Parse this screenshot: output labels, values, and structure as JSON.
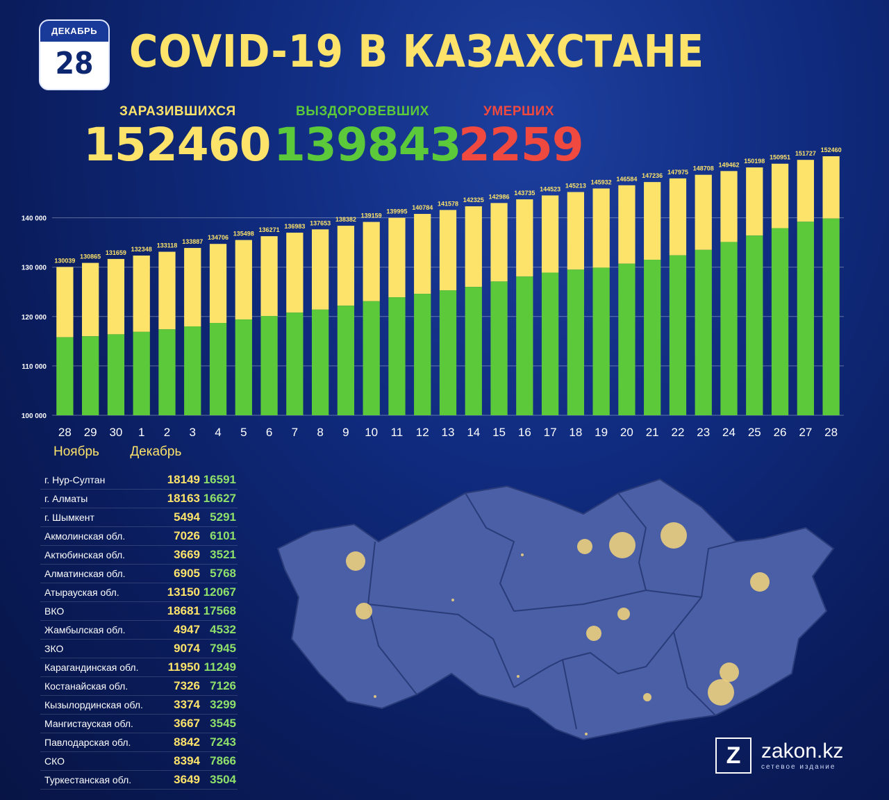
{
  "header": {
    "month": "ДЕКАБРЬ",
    "day": "28",
    "title": "COVID-19 В КАЗАХСТАНЕ"
  },
  "stats": {
    "infected_label": "ЗАРАЗИВШИХСЯ",
    "infected_value": "152460",
    "recovered_label": "ВЫЗДОРОВЕВШИХ",
    "recovered_value": "139843",
    "deaths_label": "УМЕРШИХ",
    "deaths_value": "2259"
  },
  "colors": {
    "yellow": "#fde36a",
    "green": "#5cc93a",
    "red": "#f0493f",
    "map_fill": "#4a5fa6",
    "map_stroke": "#2a3b7a",
    "bubble": "#f4d57a"
  },
  "chart_data": {
    "type": "bar",
    "categories": [
      "28",
      "29",
      "30",
      "1",
      "2",
      "3",
      "4",
      "5",
      "6",
      "7",
      "8",
      "9",
      "10",
      "11",
      "12",
      "13",
      "14",
      "15",
      "16",
      "17",
      "18",
      "19",
      "20",
      "21",
      "22",
      "23",
      "24",
      "25",
      "26",
      "27",
      "28"
    ],
    "month_labels": [
      "Ноябрь",
      "Декабрь"
    ],
    "series": [
      {
        "values": [
          115800,
          116000,
          116400,
          116900,
          117400,
          118000,
          118700,
          119400,
          120100,
          120800,
          121400,
          122200,
          123100,
          123900,
          124600,
          125300,
          126000,
          127100,
          128100,
          128900,
          129500,
          129900,
          130700,
          131500,
          132400,
          133500,
          135100,
          136400,
          137900,
          139200,
          139843
        ]
      },
      {
        "values": [
          130039,
          130865,
          131659,
          132348,
          133118,
          133887,
          134706,
          135498,
          136271,
          136983,
          137653,
          138382,
          139159,
          139995,
          140784,
          141578,
          142325,
          142986,
          143735,
          144523,
          145213,
          145932,
          146584,
          147236,
          147975,
          148708,
          149462,
          150198,
          150951,
          151727,
          152460
        ]
      }
    ],
    "ylim": [
      100000,
      152460
    ],
    "yticks": [
      "100 000",
      "110 000",
      "120 000",
      "130 000",
      "140 000"
    ],
    "ytick_values": [
      100000,
      110000,
      120000,
      130000,
      140000
    ],
    "grid": true,
    "legend": "none"
  },
  "regions": [
    {
      "name": "г. Нур-Султан",
      "infected": "18149",
      "recovered": "16591"
    },
    {
      "name": "г. Алматы",
      "infected": "18163",
      "recovered": "16627"
    },
    {
      "name": "г. Шымкент",
      "infected": "5494",
      "recovered": "5291"
    },
    {
      "name": "Акмолинская обл.",
      "infected": "7026",
      "recovered": "6101"
    },
    {
      "name": "Актюбинская обл.",
      "infected": "3669",
      "recovered": "3521"
    },
    {
      "name": "Алматинская обл.",
      "infected": "6905",
      "recovered": "5768"
    },
    {
      "name": "Атырауская обл.",
      "infected": "13150",
      "recovered": "12067"
    },
    {
      "name": "ВКО",
      "infected": "18681",
      "recovered": "17568"
    },
    {
      "name": "Жамбылская обл.",
      "infected": "4947",
      "recovered": "4532"
    },
    {
      "name": "ЗКО",
      "infected": "9074",
      "recovered": "7945"
    },
    {
      "name": "Карагандинская обл.",
      "infected": "11950",
      "recovered": "11249"
    },
    {
      "name": "Костанайская обл.",
      "infected": "7326",
      "recovered": "7126"
    },
    {
      "name": "Кызылординская обл.",
      "infected": "3374",
      "recovered": "3299"
    },
    {
      "name": "Мангистауская обл.",
      "infected": "3667",
      "recovered": "3545"
    },
    {
      "name": "Павлодарская обл.",
      "infected": "8842",
      "recovered": "7243"
    },
    {
      "name": "СКО",
      "infected": "8394",
      "recovered": "7866"
    },
    {
      "name": "Туркестанская обл.",
      "infected": "3649",
      "recovered": "3504"
    }
  ],
  "logo": {
    "letter": "Z",
    "brand": "zakon.kz",
    "sub": "сетевое издание"
  }
}
